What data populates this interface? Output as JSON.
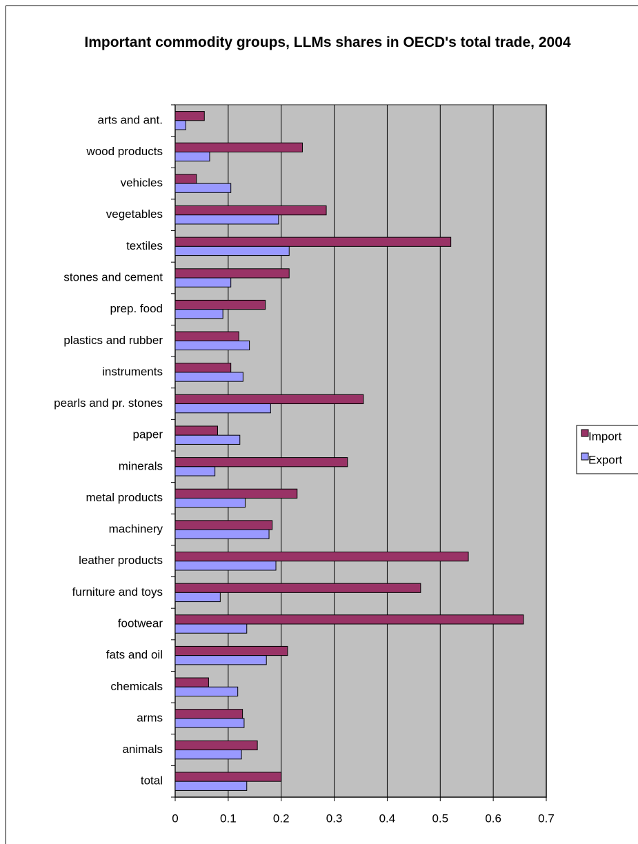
{
  "chart_data": {
    "type": "bar",
    "orientation": "horizontal",
    "title": "Important commodity groups, LLMs shares in OECD's total trade, 2004",
    "categories": [
      "arts and ant.",
      "wood products",
      "vehicles",
      "vegetables",
      "textiles",
      "stones and cement",
      "prep. food",
      "plastics and rubber",
      "instruments",
      "pearls and pr. stones",
      "paper",
      "minerals",
      "metal products",
      "machinery",
      "leather products",
      "furniture and toys",
      "footwear",
      "fats and oil",
      "chemicals",
      "arms",
      "animals",
      "total"
    ],
    "series": [
      {
        "name": "Import",
        "color": "#993366",
        "values": [
          0.055,
          0.24,
          0.04,
          0.285,
          0.52,
          0.215,
          0.17,
          0.12,
          0.105,
          0.355,
          0.08,
          0.325,
          0.23,
          0.183,
          0.553,
          0.463,
          0.657,
          0.212,
          0.063,
          0.127,
          0.155,
          0.2
        ]
      },
      {
        "name": "Export",
        "color": "#9999FF",
        "values": [
          0.02,
          0.065,
          0.105,
          0.195,
          0.215,
          0.105,
          0.09,
          0.14,
          0.128,
          0.18,
          0.122,
          0.075,
          0.132,
          0.177,
          0.19,
          0.085,
          0.135,
          0.172,
          0.118,
          0.13,
          0.125,
          0.135
        ]
      }
    ],
    "xlim": [
      0,
      0.7
    ],
    "xticks": [
      0,
      0.1,
      0.2,
      0.3,
      0.4,
      0.5,
      0.6,
      0.7
    ],
    "grid": true,
    "plot_background": "#C0C0C0",
    "legend": "right"
  }
}
